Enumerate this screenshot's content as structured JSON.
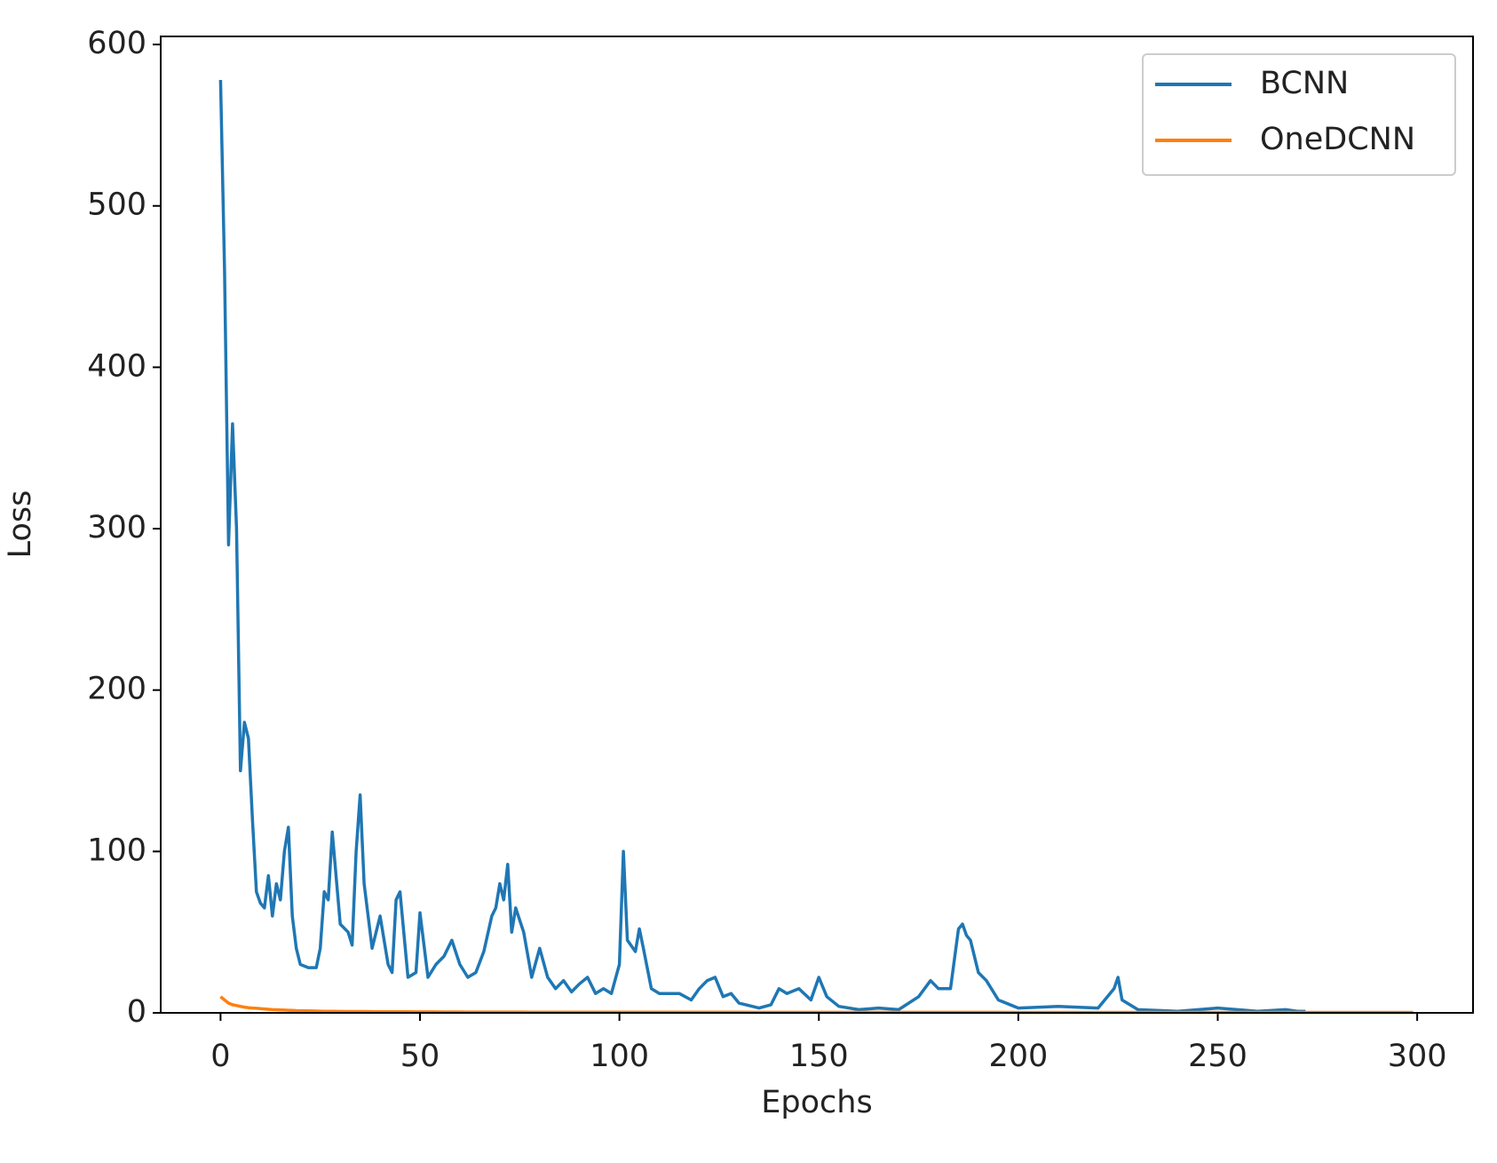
{
  "chart_data": {
    "type": "line",
    "x_label": "Epochs",
    "y_label": "Loss",
    "x": [
      0,
      1,
      2,
      3,
      4,
      5,
      6,
      7,
      8,
      9,
      10,
      11,
      12,
      13,
      14,
      15,
      16,
      17,
      18,
      19,
      20,
      22,
      24,
      25,
      26,
      27,
      28,
      30,
      32,
      33,
      34,
      35,
      36,
      38,
      40,
      42,
      43,
      44,
      45,
      47,
      49,
      50,
      52,
      54,
      56,
      58,
      60,
      62,
      64,
      66,
      68,
      69,
      70,
      71,
      72,
      73,
      74,
      76,
      78,
      80,
      82,
      84,
      86,
      88,
      90,
      92,
      94,
      96,
      98,
      100,
      101,
      102,
      104,
      105,
      106,
      108,
      110,
      115,
      118,
      120,
      122,
      124,
      126,
      128,
      130,
      135,
      138,
      140,
      142,
      145,
      148,
      150,
      152,
      155,
      160,
      165,
      170,
      175,
      178,
      180,
      183,
      185,
      186,
      187,
      188,
      190,
      192,
      195,
      200,
      210,
      220,
      224,
      225,
      226,
      230,
      240,
      250,
      260,
      267,
      270,
      272,
      280,
      290,
      299
    ],
    "series": [
      {
        "name": "BCNN",
        "color": "#1f77b4",
        "values": [
          578,
          460,
          290,
          365,
          300,
          150,
          180,
          170,
          120,
          75,
          68,
          65,
          85,
          60,
          80,
          70,
          100,
          115,
          60,
          40,
          30,
          28,
          28,
          40,
          75,
          70,
          112,
          55,
          50,
          42,
          100,
          135,
          80,
          40,
          60,
          30,
          25,
          70,
          75,
          22,
          25,
          62,
          22,
          30,
          35,
          45,
          30,
          22,
          25,
          38,
          60,
          65,
          80,
          70,
          92,
          50,
          65,
          50,
          22,
          40,
          22,
          15,
          20,
          13,
          18,
          22,
          12,
          15,
          12,
          30,
          100,
          45,
          38,
          52,
          40,
          15,
          12,
          12,
          8,
          15,
          20,
          22,
          10,
          12,
          6,
          3,
          5,
          15,
          12,
          15,
          8,
          22,
          10,
          4,
          2,
          3,
          2,
          10,
          20,
          15,
          15,
          52,
          55,
          48,
          45,
          25,
          20,
          8,
          3,
          4,
          3,
          15,
          22,
          8,
          2,
          1,
          3,
          1,
          2,
          1,
          1,
          null,
          null,
          null
        ]
      },
      {
        "name": "OneDCNN",
        "color": "#ff7f0e",
        "values": [
          10,
          8,
          6,
          5,
          4.5,
          4,
          3.5,
          3.2,
          3,
          2.8,
          2.6,
          2.4,
          2.2,
          2,
          1.9,
          1.8,
          1.7,
          1.6,
          1.5,
          1.4,
          1.3,
          1.2,
          1.1,
          1.05,
          1,
          1,
          0.95,
          0.9,
          0.85,
          0.85,
          0.8,
          0.8,
          0.8,
          0.75,
          0.7,
          0.7,
          0.7,
          0.7,
          0.65,
          0.65,
          0.6,
          0.6,
          0.6,
          0.6,
          0.55,
          0.55,
          0.55,
          0.5,
          0.5,
          0.5,
          0.5,
          0.5,
          0.5,
          0.5,
          0.5,
          0.5,
          0.5,
          0.5,
          0.45,
          0.45,
          0.45,
          0.45,
          0.45,
          0.45,
          0.45,
          0.4,
          0.4,
          0.4,
          0.4,
          0.4,
          0.4,
          0.4,
          0.4,
          0.4,
          0.4,
          0.4,
          0.4,
          0.4,
          0.4,
          0.4,
          0.4,
          0.4,
          0.4,
          0.4,
          0.4,
          0.35,
          0.35,
          0.35,
          0.35,
          0.35,
          0.35,
          0.35,
          0.35,
          0.35,
          0.35,
          0.35,
          0.35,
          0.35,
          0.35,
          0.35,
          0.35,
          0.35,
          0.35,
          0.35,
          0.35,
          0.35,
          0.35,
          0.35,
          0.3,
          0.3,
          0.3,
          0.3,
          0.3,
          0.3,
          0.3,
          0.3,
          0.3,
          0.3,
          0.3,
          0.3,
          0.3,
          0.3,
          0.3,
          0.3
        ]
      }
    ],
    "xlim": [
      -15,
      314
    ],
    "ylim": [
      0,
      605
    ],
    "xticks": [
      0,
      50,
      100,
      150,
      200,
      250,
      300
    ],
    "yticks": [
      0,
      100,
      200,
      300,
      400,
      500,
      600
    ],
    "legend": "upper right"
  }
}
